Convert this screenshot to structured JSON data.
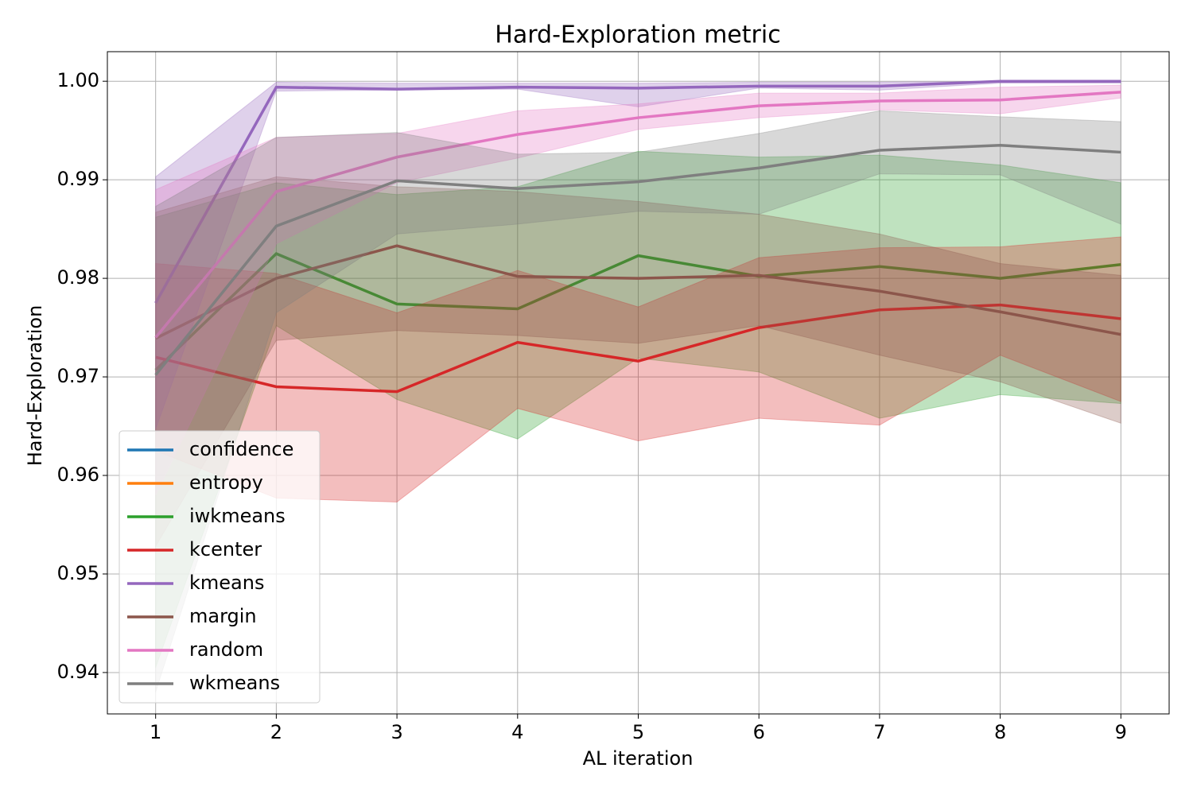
{
  "chart_data": {
    "type": "line",
    "title": "Hard-Exploration metric",
    "x_label": "AL iteration",
    "y_label": "Hard-Exploration",
    "x": [
      1,
      2,
      3,
      4,
      5,
      6,
      7,
      8,
      9
    ],
    "xlim": [
      0.6,
      9.4
    ],
    "xticks": [
      1,
      2,
      3,
      4,
      5,
      6,
      7,
      8,
      9
    ],
    "ylim": [
      0.9358,
      1.003
    ],
    "yticks": [
      0.94,
      0.95,
      0.96,
      0.97,
      0.98,
      0.99,
      {
        "value": 1,
        "label": "1.00"
      }
    ],
    "grid": true,
    "legend": "lower left",
    "series": [
      {
        "name": "confidence",
        "color": "#1f77b4",
        "values": [
          null,
          null,
          null,
          null,
          null,
          null,
          null,
          null,
          null
        ]
      },
      {
        "name": "entropy",
        "color": "#ff7f0e",
        "values": [
          null,
          null,
          null,
          null,
          null,
          null,
          null,
          null,
          null
        ]
      },
      {
        "name": "iwkmeans",
        "color": "#2ca02c",
        "values": [
          0.9707,
          0.9825,
          0.9774,
          0.9769,
          0.9823,
          0.9802,
          0.9812,
          0.98,
          0.9814
        ],
        "upper": [
          0.9862,
          0.9897,
          0.9885,
          0.9893,
          0.9929,
          0.9923,
          0.9925,
          0.9915,
          0.9897
        ],
        "lower": [
          0.9405,
          0.9752,
          0.9677,
          0.9637,
          0.9719,
          0.9705,
          0.9658,
          0.9682,
          0.9673
        ]
      },
      {
        "name": "kcenter",
        "color": "#d62728",
        "values": [
          0.972,
          0.969,
          0.9685,
          0.9735,
          0.9716,
          0.975,
          0.9768,
          0.9773,
          0.9759
        ],
        "upper": [
          0.9815,
          0.9805,
          0.9765,
          0.9808,
          0.9771,
          0.9821,
          0.9831,
          0.9832,
          0.9842
        ],
        "lower": [
          0.9625,
          0.9577,
          0.9573,
          0.9668,
          0.9635,
          0.9658,
          0.9651,
          0.9722,
          0.9675
        ]
      },
      {
        "name": "kmeans",
        "color": "#9467bd",
        "values": [
          0.9775,
          0.9994,
          0.9992,
          0.9994,
          0.9993,
          0.9995,
          0.9995,
          1.0,
          1.0
        ],
        "upper": [
          0.9903,
          0.9999,
          0.9998,
          0.9998,
          0.9998,
          0.9999,
          0.9999,
          1.0,
          1.0
        ],
        "lower": [
          0.9647,
          0.999,
          0.9991,
          0.9992,
          0.9974,
          0.9993,
          0.9991,
          0.9998,
          0.9998
        ]
      },
      {
        "name": "margin",
        "color": "#8c564b",
        "values": [
          0.9739,
          0.98,
          0.9833,
          0.9802,
          0.98,
          0.9803,
          0.9787,
          0.9766,
          0.9743
        ],
        "upper": [
          0.9867,
          0.9903,
          0.9893,
          0.9888,
          0.9878,
          0.9865,
          0.9845,
          0.9815,
          0.9803
        ],
        "lower": [
          0.9528,
          0.9737,
          0.9747,
          0.9742,
          0.9734,
          0.9752,
          0.9722,
          0.9695,
          0.9653
        ]
      },
      {
        "name": "random",
        "color": "#e377c2",
        "values": [
          0.974,
          0.9888,
          0.9923,
          0.9946,
          0.9963,
          0.9975,
          0.998,
          0.9981,
          0.9989
        ],
        "upper": [
          0.989,
          0.9943,
          0.9947,
          0.997,
          0.9977,
          0.9988,
          0.9988,
          0.9994,
          0.9996
        ],
        "lower": [
          0.958,
          0.9835,
          0.9897,
          0.9922,
          0.9951,
          0.9963,
          0.9971,
          0.9967,
          0.9983
        ]
      },
      {
        "name": "wkmeans",
        "color": "#7f7f7f",
        "values": [
          0.9702,
          0.9853,
          0.9899,
          0.9891,
          0.9898,
          0.9912,
          0.993,
          0.9935,
          0.9928
        ],
        "upper": [
          0.9873,
          0.9943,
          0.9948,
          0.9926,
          0.9928,
          0.9947,
          0.997,
          0.9964,
          0.9959
        ],
        "lower": [
          0.938,
          0.9765,
          0.9845,
          0.9855,
          0.9868,
          0.9865,
          0.9906,
          0.9905,
          0.9855
        ]
      }
    ]
  }
}
